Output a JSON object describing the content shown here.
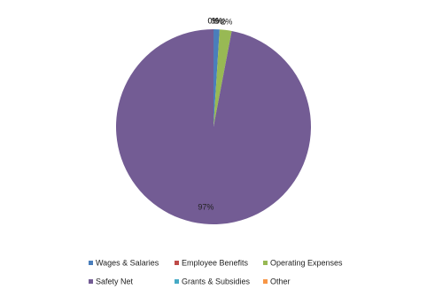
{
  "chart_data": {
    "type": "pie",
    "categories": [
      "Wages & Salaries",
      "Employee Benefits",
      "Operating Expenses",
      "Safety Net",
      "Grants & Subsidies",
      "Other"
    ],
    "values": [
      1,
      0,
      2,
      97,
      0,
      0
    ],
    "value_labels": [
      "1%",
      "0%",
      "2%",
      "97%",
      "0%",
      "0%"
    ],
    "colors": [
      "#4a7ebb",
      "#be4b48",
      "#98b954",
      "#735c94",
      "#46aac5",
      "#f79646"
    ],
    "legend": "bottom"
  }
}
